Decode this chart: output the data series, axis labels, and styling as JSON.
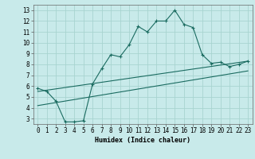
{
  "xlabel": "Humidex (Indice chaleur)",
  "bg_color": "#c8eaea",
  "grid_color": "#a8d4d0",
  "line_color": "#1a6b60",
  "xlim": [
    -0.5,
    23.5
  ],
  "ylim": [
    2.5,
    13.5
  ],
  "xticks": [
    0,
    1,
    2,
    3,
    4,
    5,
    6,
    7,
    8,
    9,
    10,
    11,
    12,
    13,
    14,
    15,
    16,
    17,
    18,
    19,
    20,
    21,
    22,
    23
  ],
  "yticks": [
    3,
    4,
    5,
    6,
    7,
    8,
    9,
    10,
    11,
    12,
    13
  ],
  "line1_x": [
    0,
    1,
    2,
    3,
    4,
    5,
    6,
    7,
    8,
    9,
    10,
    11,
    12,
    13,
    14,
    15,
    16,
    17,
    18,
    19,
    20,
    21,
    22,
    23
  ],
  "line1_y": [
    5.8,
    5.5,
    4.6,
    2.7,
    2.7,
    2.8,
    6.2,
    7.6,
    8.9,
    8.7,
    9.8,
    11.5,
    11.0,
    12.0,
    12.0,
    13.0,
    11.7,
    11.4,
    8.9,
    8.1,
    8.2,
    7.8,
    8.0,
    8.3
  ],
  "line2_x": [
    0,
    23
  ],
  "line2_y": [
    5.5,
    8.3
  ],
  "line3_x": [
    0,
    23
  ],
  "line3_y": [
    4.2,
    7.4
  ],
  "tick_fontsize": 5.5,
  "xlabel_fontsize": 6.0
}
